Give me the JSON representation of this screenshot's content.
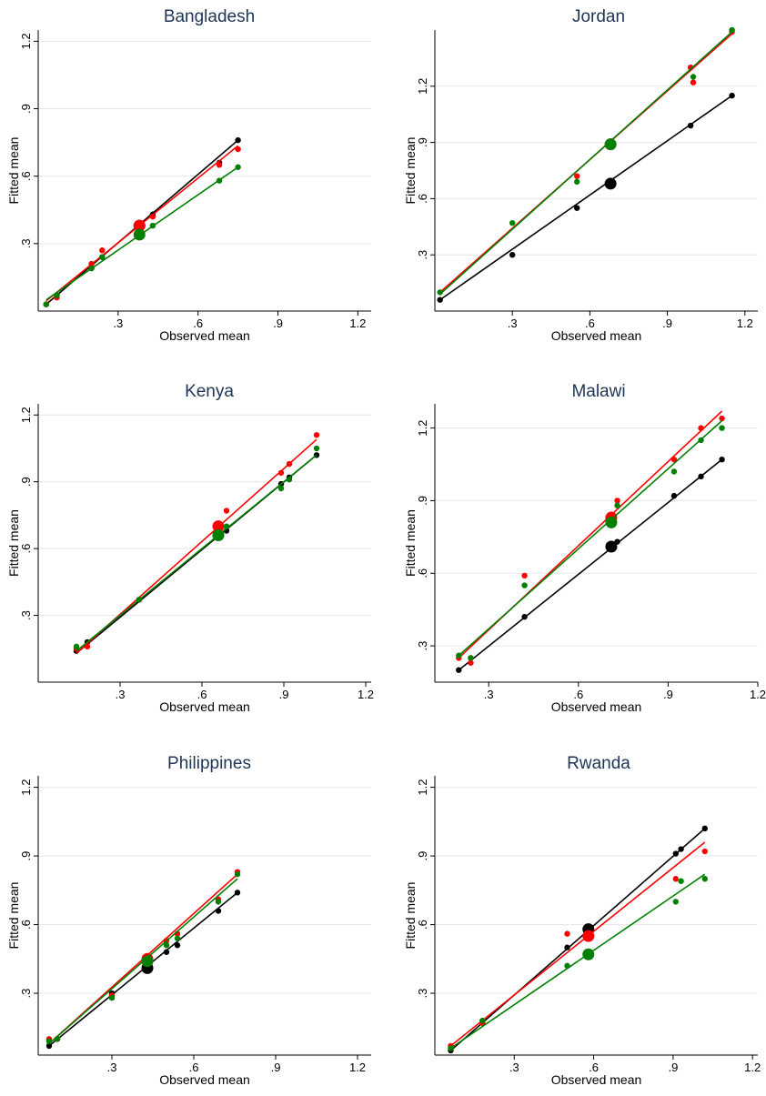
{
  "chart_data": [
    {
      "type": "scatter",
      "title": "Bangladesh",
      "xlabel": "Observed mean",
      "ylabel": "Fitted mean",
      "xlim": [
        0,
        1.25
      ],
      "ylim": [
        0,
        1.25
      ],
      "xticks": [
        0.3,
        0.6,
        0.9,
        1.2
      ],
      "xtick_labels": [
        ".3",
        ".6",
        ".9",
        "1.2"
      ],
      "yticks": [
        0.3,
        0.6,
        0.9,
        1.2
      ],
      "ytick_labels": [
        ".3",
        ".6",
        ".9",
        "1.2"
      ],
      "grid": true,
      "series": [
        {
          "color": "#000000",
          "points": [
            [
              0.03,
              0.03
            ],
            [
              0.07,
              0.07
            ],
            [
              0.2,
              0.19
            ],
            [
              0.24,
              0.24
            ],
            [
              0.43,
              0.43
            ],
            [
              0.68,
              0.66
            ],
            [
              0.75,
              0.76
            ]
          ],
          "mean": [
            0.38,
            0.38
          ],
          "line": [
            [
              0.03,
              0.03
            ],
            [
              0.75,
              0.76
            ]
          ]
        },
        {
          "color": "#ff0000",
          "points": [
            [
              0.03,
              0.03
            ],
            [
              0.07,
              0.06
            ],
            [
              0.2,
              0.21
            ],
            [
              0.24,
              0.27
            ],
            [
              0.43,
              0.42
            ],
            [
              0.68,
              0.65
            ],
            [
              0.75,
              0.72
            ]
          ],
          "mean": [
            0.38,
            0.38
          ],
          "line": [
            [
              0.03,
              0.045
            ],
            [
              0.75,
              0.735
            ]
          ]
        },
        {
          "color": "#008000",
          "points": [
            [
              0.03,
              0.03
            ],
            [
              0.07,
              0.07
            ],
            [
              0.2,
              0.19
            ],
            [
              0.24,
              0.24
            ],
            [
              0.43,
              0.38
            ],
            [
              0.68,
              0.58
            ],
            [
              0.75,
              0.64
            ]
          ],
          "mean": [
            0.38,
            0.34
          ],
          "line": [
            [
              0.03,
              0.05
            ],
            [
              0.75,
              0.64
            ]
          ]
        }
      ]
    },
    {
      "type": "scatter",
      "title": "Jordan",
      "xlabel": "Observed mean",
      "ylabel": "Fitted mean",
      "xlim": [
        0,
        1.25
      ],
      "ylim": [
        0,
        1.5
      ],
      "xticks": [
        0.3,
        0.6,
        0.9,
        1.2
      ],
      "xtick_labels": [
        ".3",
        ".6",
        ".9",
        "1.2"
      ],
      "yticks": [
        0.3,
        0.6,
        0.9,
        1.2
      ],
      "ytick_labels": [
        ".3",
        ".6",
        ".9",
        "1.2"
      ],
      "grid": true,
      "series": [
        {
          "color": "#000000",
          "points": [
            [
              0.02,
              0.06
            ],
            [
              0.3,
              0.3
            ],
            [
              0.55,
              0.55
            ],
            [
              0.99,
              0.99
            ],
            [
              1.15,
              1.15
            ]
          ],
          "mean": [
            0.68,
            0.68
          ],
          "line": [
            [
              0.02,
              0.06
            ],
            [
              1.15,
              1.15
            ]
          ]
        },
        {
          "color": "#ff0000",
          "points": [
            [
              0.55,
              0.72
            ],
            [
              0.99,
              1.3
            ],
            [
              1.0,
              1.22
            ],
            [
              1.15,
              1.49
            ]
          ],
          "mean": [
            0.68,
            0.89
          ],
          "line": [
            [
              0.02,
              0.1
            ],
            [
              1.15,
              1.48
            ]
          ]
        },
        {
          "color": "#008000",
          "points": [
            [
              0.02,
              0.1
            ],
            [
              0.3,
              0.47
            ],
            [
              0.55,
              0.69
            ],
            [
              1.0,
              1.25
            ],
            [
              1.15,
              1.5
            ]
          ],
          "mean": [
            0.68,
            0.89
          ],
          "line": [
            [
              0.02,
              0.09
            ],
            [
              1.15,
              1.49
            ]
          ]
        }
      ]
    },
    {
      "type": "scatter",
      "title": "Kenya",
      "xlabel": "Observed mean",
      "ylabel": "Fitted mean",
      "xlim": [
        0,
        1.22
      ],
      "ylim": [
        0,
        1.25
      ],
      "xticks": [
        0.3,
        0.6,
        0.9,
        1.2
      ],
      "xtick_labels": [
        ".3",
        ".6",
        ".9",
        "1.2"
      ],
      "yticks": [
        0.3,
        0.6,
        0.9,
        1.2
      ],
      "ytick_labels": [
        ".3",
        ".6",
        ".9",
        "1.2"
      ],
      "grid": true,
      "series": [
        {
          "color": "#000000",
          "points": [
            [
              0.14,
              0.14
            ],
            [
              0.18,
              0.18
            ],
            [
              0.37,
              0.37
            ],
            [
              0.69,
              0.68
            ],
            [
              0.89,
              0.89
            ],
            [
              0.92,
              0.92
            ],
            [
              1.02,
              1.02
            ]
          ],
          "mean": [
            0.66,
            0.66
          ],
          "line": [
            [
              0.14,
              0.13
            ],
            [
              1.02,
              1.02
            ]
          ]
        },
        {
          "color": "#ff0000",
          "points": [
            [
              0.14,
              0.15
            ],
            [
              0.18,
              0.16
            ],
            [
              0.37,
              0.37
            ],
            [
              0.69,
              0.77
            ],
            [
              0.89,
              0.94
            ],
            [
              0.92,
              0.98
            ],
            [
              1.02,
              1.11
            ]
          ],
          "mean": [
            0.66,
            0.7
          ],
          "line": [
            [
              0.14,
              0.13
            ],
            [
              1.02,
              1.09
            ]
          ]
        },
        {
          "color": "#008000",
          "points": [
            [
              0.14,
              0.16
            ],
            [
              0.37,
              0.37
            ],
            [
              0.69,
              0.7
            ],
            [
              0.89,
              0.87
            ],
            [
              0.92,
              0.91
            ],
            [
              1.02,
              1.05
            ]
          ],
          "mean": [
            0.66,
            0.66
          ],
          "line": [
            [
              0.14,
              0.14
            ],
            [
              1.02,
              1.02
            ]
          ]
        }
      ]
    },
    {
      "type": "scatter",
      "title": "Malawi",
      "xlabel": "Observed mean",
      "ylabel": "Fitted mean",
      "xlim": [
        0.12,
        1.2
      ],
      "ylim": [
        0.15,
        1.3
      ],
      "xticks": [
        0.3,
        0.6,
        0.9,
        1.2
      ],
      "xtick_labels": [
        ".3",
        ".6",
        ".9",
        "1.2"
      ],
      "yticks": [
        0.3,
        0.6,
        0.9,
        1.2
      ],
      "ytick_labels": [
        ".3",
        ".6",
        ".9",
        "1.2"
      ],
      "grid": true,
      "series": [
        {
          "color": "#000000",
          "points": [
            [
              0.2,
              0.2
            ],
            [
              0.24,
              0.25
            ],
            [
              0.42,
              0.42
            ],
            [
              0.73,
              0.73
            ],
            [
              0.92,
              0.92
            ],
            [
              1.01,
              1.0
            ],
            [
              1.08,
              1.07
            ]
          ],
          "mean": [
            0.71,
            0.71
          ],
          "line": [
            [
              0.2,
              0.2
            ],
            [
              1.08,
              1.07
            ]
          ]
        },
        {
          "color": "#ff0000",
          "points": [
            [
              0.2,
              0.25
            ],
            [
              0.24,
              0.23
            ],
            [
              0.42,
              0.59
            ],
            [
              0.73,
              0.9
            ],
            [
              0.92,
              1.07
            ],
            [
              1.01,
              1.2
            ],
            [
              1.08,
              1.24
            ]
          ],
          "mean": [
            0.71,
            0.83
          ],
          "line": [
            [
              0.2,
              0.25
            ],
            [
              1.08,
              1.27
            ]
          ]
        },
        {
          "color": "#008000",
          "points": [
            [
              0.2,
              0.26
            ],
            [
              0.24,
              0.25
            ],
            [
              0.42,
              0.55
            ],
            [
              0.73,
              0.88
            ],
            [
              0.92,
              1.02
            ],
            [
              1.01,
              1.15
            ],
            [
              1.08,
              1.2
            ]
          ],
          "mean": [
            0.71,
            0.81
          ],
          "line": [
            [
              0.2,
              0.26
            ],
            [
              1.08,
              1.23
            ]
          ]
        }
      ]
    },
    {
      "type": "scatter",
      "title": "Philippines",
      "xlabel": "Observed mean",
      "ylabel": "Fitted mean",
      "xlim": [
        0.03,
        1.25
      ],
      "ylim": [
        0.03,
        1.25
      ],
      "xticks": [
        0.3,
        0.6,
        0.9,
        1.2
      ],
      "xtick_labels": [
        ".3",
        ".6",
        ".9",
        "1.2"
      ],
      "yticks": [
        0.3,
        0.6,
        0.9,
        1.2
      ],
      "ytick_labels": [
        ".3",
        ".6",
        ".9",
        "1.2"
      ],
      "grid": true,
      "series": [
        {
          "color": "#000000",
          "points": [
            [
              0.07,
              0.07
            ],
            [
              0.1,
              0.1
            ],
            [
              0.3,
              0.3
            ],
            [
              0.5,
              0.48
            ],
            [
              0.54,
              0.51
            ],
            [
              0.69,
              0.66
            ],
            [
              0.76,
              0.74
            ]
          ],
          "mean": [
            0.43,
            0.41
          ],
          "line": [
            [
              0.07,
              0.07
            ],
            [
              0.76,
              0.74
            ]
          ]
        },
        {
          "color": "#ff0000",
          "points": [
            [
              0.07,
              0.1
            ],
            [
              0.1,
              0.1
            ],
            [
              0.3,
              0.29
            ],
            [
              0.5,
              0.53
            ],
            [
              0.54,
              0.56
            ],
            [
              0.69,
              0.71
            ],
            [
              0.76,
              0.83
            ]
          ],
          "mean": [
            0.43,
            0.45
          ],
          "line": [
            [
              0.07,
              0.08
            ],
            [
              0.76,
              0.82
            ]
          ]
        },
        {
          "color": "#008000",
          "points": [
            [
              0.07,
              0.09
            ],
            [
              0.1,
              0.1
            ],
            [
              0.3,
              0.28
            ],
            [
              0.5,
              0.51
            ],
            [
              0.54,
              0.54
            ],
            [
              0.69,
              0.7
            ],
            [
              0.76,
              0.82
            ]
          ],
          "mean": [
            0.43,
            0.44
          ],
          "line": [
            [
              0.07,
              0.08
            ],
            [
              0.76,
              0.8
            ]
          ]
        }
      ]
    },
    {
      "type": "scatter",
      "title": "Rwanda",
      "xlabel": "Observed mean",
      "ylabel": "Fitted mean",
      "xlim": [
        0.0,
        1.22
      ],
      "ylim": [
        0.03,
        1.25
      ],
      "xticks": [
        0.3,
        0.6,
        0.9,
        1.2
      ],
      "xtick_labels": [
        ".3",
        ".6",
        ".9",
        "1.2"
      ],
      "yticks": [
        0.3,
        0.6,
        0.9,
        1.2
      ],
      "ytick_labels": [
        ".3",
        ".6",
        ".9",
        "1.2"
      ],
      "grid": true,
      "series": [
        {
          "color": "#000000",
          "points": [
            [
              0.06,
              0.05
            ],
            [
              0.18,
              0.18
            ],
            [
              0.5,
              0.5
            ],
            [
              0.91,
              0.91
            ],
            [
              0.93,
              0.93
            ],
            [
              1.02,
              1.02
            ]
          ],
          "mean": [
            0.58,
            0.58
          ],
          "line": [
            [
              0.06,
              0.05
            ],
            [
              1.02,
              1.02
            ]
          ]
        },
        {
          "color": "#ff0000",
          "points": [
            [
              0.06,
              0.07
            ],
            [
              0.18,
              0.17
            ],
            [
              0.5,
              0.56
            ],
            [
              0.91,
              0.8
            ],
            [
              1.02,
              0.92
            ]
          ],
          "mean": [
            0.58,
            0.55
          ],
          "line": [
            [
              0.06,
              0.07
            ],
            [
              1.02,
              0.96
            ]
          ]
        },
        {
          "color": "#008000",
          "points": [
            [
              0.06,
              0.06
            ],
            [
              0.18,
              0.18
            ],
            [
              0.5,
              0.42
            ],
            [
              0.91,
              0.7
            ],
            [
              0.93,
              0.79
            ],
            [
              1.02,
              0.8
            ]
          ],
          "mean": [
            0.58,
            0.47
          ],
          "line": [
            [
              0.06,
              0.06
            ],
            [
              1.02,
              0.82
            ]
          ]
        }
      ]
    }
  ]
}
